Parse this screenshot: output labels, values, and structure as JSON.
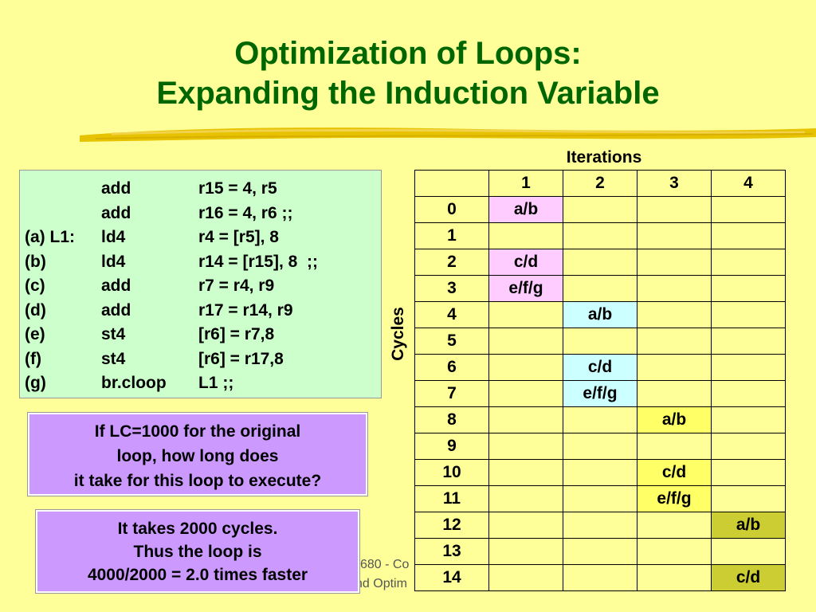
{
  "title": {
    "line1": "Optimization of Loops:",
    "line2": "Expanding the Induction Variable"
  },
  "code": [
    {
      "label": "",
      "op": "add",
      "args": "r15 = 4, r5"
    },
    {
      "label": "",
      "op": "add",
      "args": "r16 = 4, r6 ;;"
    },
    {
      "label": "(a) L1:",
      "op": "ld4",
      "args": "r4 = [r5], 8"
    },
    {
      "label": "(b)",
      "op": "ld4",
      "args": "r14 = [r15], 8  ;;"
    },
    {
      "label": "(c)",
      "op": "add",
      "args": "r7 = r4, r9"
    },
    {
      "label": "(d)",
      "op": "add",
      "args": "r17 = r14, r9"
    },
    {
      "label": "(e)",
      "op": "st4",
      "args": "[r6] = r7,8"
    },
    {
      "label": "(f)",
      "op": "st4",
      "args": "[r6] = r17,8"
    },
    {
      "label": "(g)",
      "op": "br.cloop",
      "args": "L1 ;;"
    }
  ],
  "question": {
    "line1": "If LC=1000 for the original",
    "line2": "loop, how long does",
    "line3": "it take for this loop to execute?"
  },
  "answer": {
    "line1": "It takes 2000 cycles.",
    "line2": "Thus the loop is",
    "line3": "4000/2000 = 2.0 times faster"
  },
  "footer": {
    "frag1": "680 - Co",
    "frag2": "nd Optim"
  },
  "grid": {
    "title": "Iterations",
    "axis_label": "Cycles",
    "columns": [
      "1",
      "2",
      "3",
      "4"
    ],
    "rows": [
      {
        "cycle": "0",
        "cells": [
          "a/b",
          "",
          "",
          ""
        ]
      },
      {
        "cycle": "1",
        "cells": [
          "",
          "",
          "",
          ""
        ]
      },
      {
        "cycle": "2",
        "cells": [
          "c/d",
          "",
          "",
          ""
        ]
      },
      {
        "cycle": "3",
        "cells": [
          "e/f/g",
          "",
          "",
          ""
        ]
      },
      {
        "cycle": "4",
        "cells": [
          "",
          "a/b",
          "",
          ""
        ]
      },
      {
        "cycle": "5",
        "cells": [
          "",
          "",
          "",
          ""
        ]
      },
      {
        "cycle": "6",
        "cells": [
          "",
          "c/d",
          "",
          ""
        ]
      },
      {
        "cycle": "7",
        "cells": [
          "",
          "e/f/g",
          "",
          ""
        ]
      },
      {
        "cycle": "8",
        "cells": [
          "",
          "",
          "a/b",
          ""
        ]
      },
      {
        "cycle": "9",
        "cells": [
          "",
          "",
          "",
          ""
        ]
      },
      {
        "cycle": "10",
        "cells": [
          "",
          "",
          "c/d",
          ""
        ]
      },
      {
        "cycle": "11",
        "cells": [
          "",
          "",
          "e/f/g",
          ""
        ]
      },
      {
        "cycle": "12",
        "cells": [
          "",
          "",
          "",
          "a/b"
        ]
      },
      {
        "cycle": "13",
        "cells": [
          "",
          "",
          "",
          ""
        ]
      },
      {
        "cycle": "14",
        "cells": [
          "",
          "",
          "",
          "c/d"
        ]
      }
    ],
    "iteration_colors": [
      "#ffccff",
      "#ccffff",
      "#ffff66",
      "#cccc33"
    ]
  },
  "colors": {
    "background": "#ffff99",
    "title": "#006600",
    "code_box": "#ccffcc",
    "question_box": "#cc99ff"
  }
}
